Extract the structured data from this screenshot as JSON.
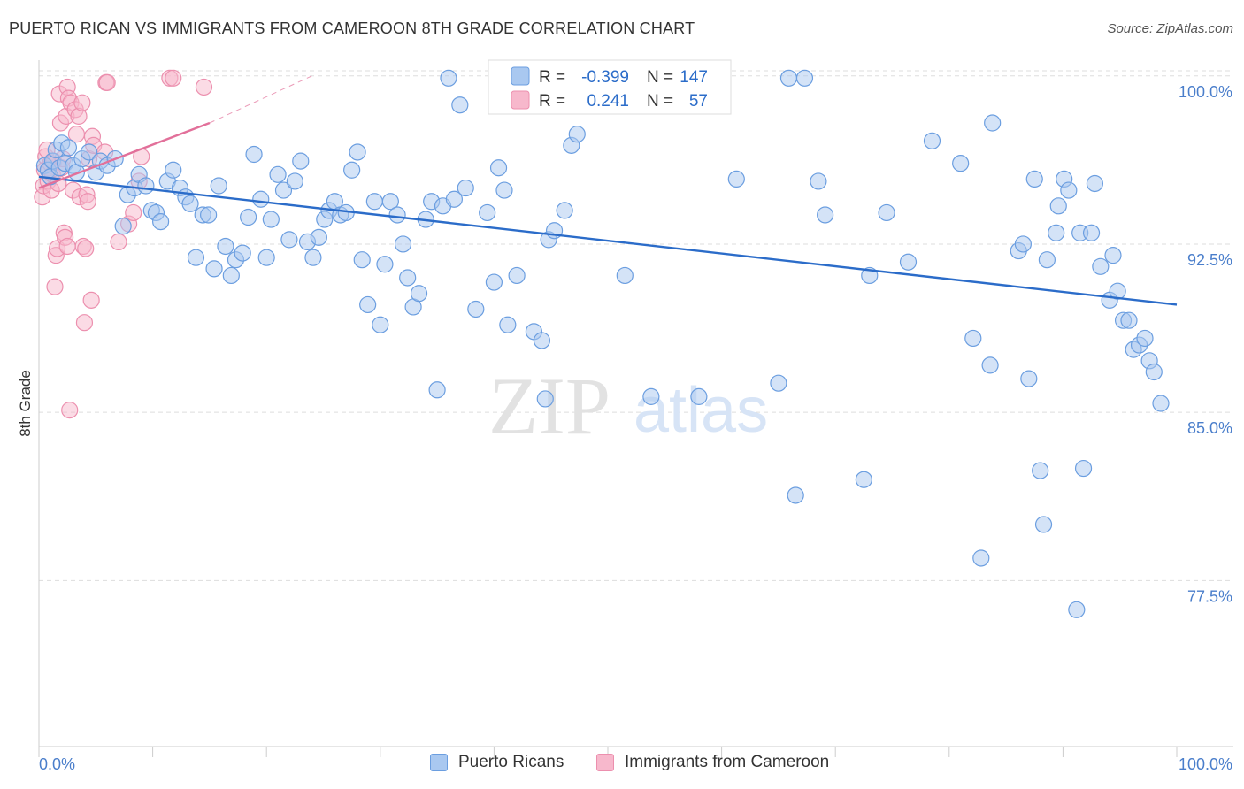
{
  "header": {
    "title": "PUERTO RICAN VS IMMIGRANTS FROM CAMEROON 8TH GRADE CORRELATION CHART",
    "source": "Source: ZipAtlas.com"
  },
  "watermark": {
    "zip": "ZIP",
    "atlas": "atlas"
  },
  "colors": {
    "blue_fill": "#a9c8f0",
    "blue_stroke": "#6b9ee0",
    "blue_line": "#2b6cc9",
    "pink_fill": "#f7b8cc",
    "pink_stroke": "#ec8fae",
    "pink_line": "#e2709a",
    "tick_text": "#4a7ecb",
    "grid": "#dddddd"
  },
  "legend": {
    "rows": [
      {
        "r_label": "R =",
        "r_value": "-0.399",
        "n_label": "N =",
        "n_value": "147"
      },
      {
        "r_label": "R =",
        "r_value": "0.241",
        "n_label": "N =",
        "n_value": "57"
      }
    ]
  },
  "chart_data": {
    "type": "scatter",
    "title": "PUERTO RICAN VS IMMIGRANTS FROM CAMEROON 8TH GRADE CORRELATION CHART",
    "ylabel": "8th Grade",
    "xlabel": "",
    "xlim": [
      0,
      100
    ],
    "ylim": [
      70.1,
      100.7
    ],
    "x_tick_labels": [
      "0.0%",
      "100.0%"
    ],
    "y_ticks": [
      100.0,
      92.5,
      85.0,
      77.5
    ],
    "y_tick_labels": [
      "100.0%",
      "92.5%",
      "85.0%",
      "77.5%"
    ],
    "grid": true,
    "legend_placement": "top-center",
    "series": [
      {
        "name": "Puerto Ricans",
        "trend": {
          "x": [
            0,
            100
          ],
          "y": [
            95.5,
            89.8
          ]
        },
        "points": [
          [
            0.5,
            96.0
          ],
          [
            0.8,
            95.8
          ],
          [
            1.0,
            95.5
          ],
          [
            1.2,
            96.2
          ],
          [
            1.5,
            96.7
          ],
          [
            1.8,
            95.9
          ],
          [
            2.0,
            97.0
          ],
          [
            2.3,
            96.1
          ],
          [
            2.6,
            96.8
          ],
          [
            3.0,
            96.0
          ],
          [
            3.3,
            95.7
          ],
          [
            3.8,
            96.3
          ],
          [
            4.4,
            96.6
          ],
          [
            5.0,
            95.7
          ],
          [
            5.4,
            96.2
          ],
          [
            6.0,
            96.0
          ],
          [
            6.7,
            96.3
          ],
          [
            7.4,
            93.3
          ],
          [
            7.8,
            94.7
          ],
          [
            8.4,
            95.0
          ],
          [
            8.8,
            95.6
          ],
          [
            9.4,
            95.1
          ],
          [
            9.9,
            94.0
          ],
          [
            10.3,
            93.9
          ],
          [
            10.7,
            93.5
          ],
          [
            11.3,
            95.3
          ],
          [
            11.8,
            95.8
          ],
          [
            12.4,
            95.0
          ],
          [
            12.9,
            94.6
          ],
          [
            13.3,
            94.3
          ],
          [
            13.8,
            91.9
          ],
          [
            14.4,
            93.8
          ],
          [
            14.9,
            93.8
          ],
          [
            15.4,
            91.4
          ],
          [
            15.8,
            95.1
          ],
          [
            16.4,
            92.4
          ],
          [
            16.9,
            91.1
          ],
          [
            17.3,
            91.8
          ],
          [
            17.9,
            92.1
          ],
          [
            18.4,
            93.7
          ],
          [
            18.9,
            96.5
          ],
          [
            19.5,
            94.5
          ],
          [
            20.0,
            91.9
          ],
          [
            20.4,
            93.6
          ],
          [
            21.0,
            95.6
          ],
          [
            21.5,
            94.9
          ],
          [
            22.0,
            92.7
          ],
          [
            22.5,
            95.3
          ],
          [
            23.0,
            96.2
          ],
          [
            23.6,
            92.6
          ],
          [
            24.1,
            91.9
          ],
          [
            24.6,
            92.8
          ],
          [
            25.1,
            93.6
          ],
          [
            25.5,
            94.0
          ],
          [
            26.0,
            94.4
          ],
          [
            26.5,
            93.8
          ],
          [
            27.0,
            93.9
          ],
          [
            27.5,
            95.8
          ],
          [
            28.0,
            96.6
          ],
          [
            28.4,
            91.8
          ],
          [
            28.9,
            89.8
          ],
          [
            29.5,
            94.4
          ],
          [
            30.0,
            88.9
          ],
          [
            30.4,
            91.6
          ],
          [
            30.9,
            94.4
          ],
          [
            31.5,
            93.8
          ],
          [
            32.0,
            92.5
          ],
          [
            32.4,
            91.0
          ],
          [
            32.9,
            89.7
          ],
          [
            33.4,
            90.3
          ],
          [
            34.0,
            93.6
          ],
          [
            34.5,
            94.4
          ],
          [
            35.0,
            86.0
          ],
          [
            35.5,
            94.2
          ],
          [
            36.0,
            99.9
          ],
          [
            36.5,
            94.5
          ],
          [
            37.0,
            98.7
          ],
          [
            37.5,
            95.0
          ],
          [
            38.4,
            89.6
          ],
          [
            39.4,
            93.9
          ],
          [
            40.0,
            90.8
          ],
          [
            40.4,
            95.9
          ],
          [
            40.9,
            94.9
          ],
          [
            41.2,
            88.9
          ],
          [
            42.0,
            91.1
          ],
          [
            43.5,
            88.6
          ],
          [
            44.2,
            88.2
          ],
          [
            44.5,
            85.6
          ],
          [
            44.8,
            92.7
          ],
          [
            45.3,
            93.1
          ],
          [
            46.2,
            94.0
          ],
          [
            46.8,
            96.9
          ],
          [
            47.3,
            97.4
          ],
          [
            49.7,
            99.9
          ],
          [
            51.5,
            91.1
          ],
          [
            53.8,
            85.7
          ],
          [
            55.7,
            99.9
          ],
          [
            58.0,
            85.7
          ],
          [
            61.3,
            95.4
          ],
          [
            65.0,
            86.3
          ],
          [
            65.9,
            99.9
          ],
          [
            66.5,
            81.3
          ],
          [
            67.3,
            99.9
          ],
          [
            68.5,
            95.3
          ],
          [
            69.1,
            93.8
          ],
          [
            72.5,
            82.0
          ],
          [
            73.0,
            91.1
          ],
          [
            74.5,
            93.9
          ],
          [
            76.4,
            91.7
          ],
          [
            78.5,
            97.1
          ],
          [
            81.0,
            96.1
          ],
          [
            82.1,
            88.3
          ],
          [
            82.8,
            78.5
          ],
          [
            83.6,
            87.1
          ],
          [
            83.8,
            97.9
          ],
          [
            86.1,
            92.2
          ],
          [
            86.5,
            92.5
          ],
          [
            87.0,
            86.5
          ],
          [
            87.5,
            95.4
          ],
          [
            88.0,
            82.4
          ],
          [
            88.3,
            80.0
          ],
          [
            88.6,
            91.8
          ],
          [
            89.4,
            93.0
          ],
          [
            89.6,
            94.2
          ],
          [
            90.1,
            95.4
          ],
          [
            90.5,
            94.9
          ],
          [
            91.2,
            76.2
          ],
          [
            91.5,
            93.0
          ],
          [
            91.8,
            82.5
          ],
          [
            92.5,
            93.0
          ],
          [
            92.8,
            95.2
          ],
          [
            93.3,
            91.5
          ],
          [
            94.1,
            90.0
          ],
          [
            94.4,
            92.0
          ],
          [
            94.8,
            90.4
          ],
          [
            95.3,
            89.1
          ],
          [
            95.8,
            89.1
          ],
          [
            96.2,
            87.8
          ],
          [
            96.7,
            88.0
          ],
          [
            97.2,
            88.3
          ],
          [
            97.6,
            87.3
          ],
          [
            98.0,
            86.8
          ],
          [
            98.6,
            85.4
          ]
        ]
      },
      {
        "name": "Immigrants from Cameroon",
        "trend": {
          "x": [
            0,
            15
          ],
          "y": [
            95.0,
            97.9
          ]
        },
        "trend_extension": {
          "x": [
            15,
            24
          ],
          "y": [
            97.9,
            100.0
          ]
        },
        "points": [
          [
            0.3,
            94.6
          ],
          [
            0.4,
            95.1
          ],
          [
            0.5,
            95.8
          ],
          [
            0.6,
            96.4
          ],
          [
            0.7,
            96.7
          ],
          [
            0.8,
            95.3
          ],
          [
            0.9,
            95.9
          ],
          [
            1.0,
            96.1
          ],
          [
            1.1,
            94.9
          ],
          [
            1.2,
            95.6
          ],
          [
            1.3,
            96.2
          ],
          [
            1.4,
            90.6
          ],
          [
            1.5,
            92.0
          ],
          [
            1.6,
            92.3
          ],
          [
            1.7,
            95.2
          ],
          [
            1.8,
            99.2
          ],
          [
            1.9,
            97.9
          ],
          [
            2.0,
            95.9
          ],
          [
            2.1,
            96.3
          ],
          [
            2.2,
            93.0
          ],
          [
            2.3,
            92.8
          ],
          [
            2.4,
            98.2
          ],
          [
            2.5,
            92.4
          ],
          [
            2.5,
            99.5
          ],
          [
            2.6,
            99.0
          ],
          [
            2.7,
            85.1
          ],
          [
            2.8,
            98.8
          ],
          [
            3.0,
            94.9
          ],
          [
            3.2,
            98.5
          ],
          [
            3.3,
            97.4
          ],
          [
            3.5,
            98.2
          ],
          [
            3.6,
            94.6
          ],
          [
            3.8,
            98.8
          ],
          [
            3.9,
            92.4
          ],
          [
            4.0,
            89.0
          ],
          [
            4.1,
            92.3
          ],
          [
            4.2,
            94.7
          ],
          [
            4.3,
            94.4
          ],
          [
            4.4,
            96.3
          ],
          [
            4.6,
            90.0
          ],
          [
            4.7,
            97.3
          ],
          [
            4.8,
            96.9
          ],
          [
            5.8,
            96.6
          ],
          [
            5.9,
            99.7
          ],
          [
            6.0,
            99.7
          ],
          [
            7.0,
            92.6
          ],
          [
            7.9,
            93.4
          ],
          [
            8.3,
            93.9
          ],
          [
            8.8,
            95.3
          ],
          [
            9.0,
            96.4
          ],
          [
            11.5,
            99.9
          ],
          [
            11.8,
            99.9
          ],
          [
            14.5,
            99.5
          ]
        ]
      }
    ]
  },
  "bottom_legend": {
    "items": [
      {
        "label": "Puerto Ricans"
      },
      {
        "label": "Immigrants from Cameroon"
      }
    ]
  }
}
